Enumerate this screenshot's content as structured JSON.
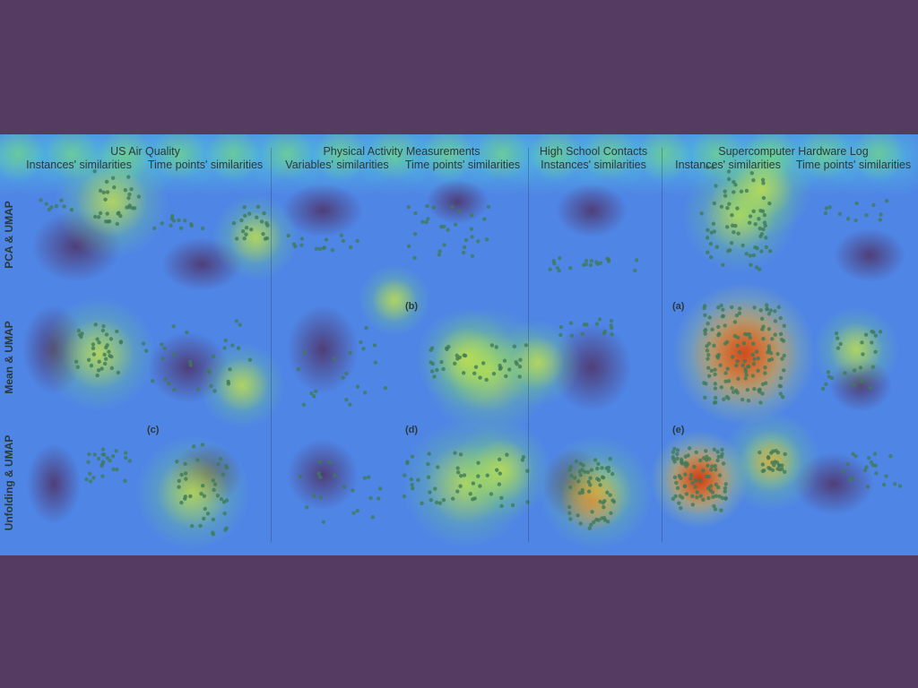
{
  "chart_data": {
    "type": "scatter",
    "datasets": [
      {
        "title": "US Air Quality",
        "columns": [
          "Instances' similarities",
          "Time points' similarities"
        ]
      },
      {
        "title": "Physical Activity Measurements",
        "columns": [
          "Variables' similarities",
          "Time points' similarities"
        ]
      },
      {
        "title": "High School Contacts",
        "columns": [
          "Instances' similarities"
        ]
      },
      {
        "title": "Supercomputer Hardware Log",
        "columns": [
          "Instances' similarities",
          "Time points' similarities"
        ]
      }
    ],
    "rows": [
      "PCA & UMAP",
      "Mean & UMAP",
      "Unfolding & UMAP"
    ],
    "panel_labels": [
      {
        "row": 1,
        "col": 3,
        "text": "(b)"
      },
      {
        "row": 1,
        "col": 5,
        "text": "(a)"
      },
      {
        "row": 2,
        "col": 1,
        "text": "(c)"
      },
      {
        "row": 2,
        "col": 3,
        "text": "(d)"
      },
      {
        "row": 2,
        "col": 5,
        "text": "(e)"
      }
    ]
  },
  "colors": {
    "background": "#553b62",
    "heat_low": "#4f86e6",
    "heat_mid": "#7be36a",
    "heat_high": "#c5301f",
    "point": "#3f7a5a"
  }
}
